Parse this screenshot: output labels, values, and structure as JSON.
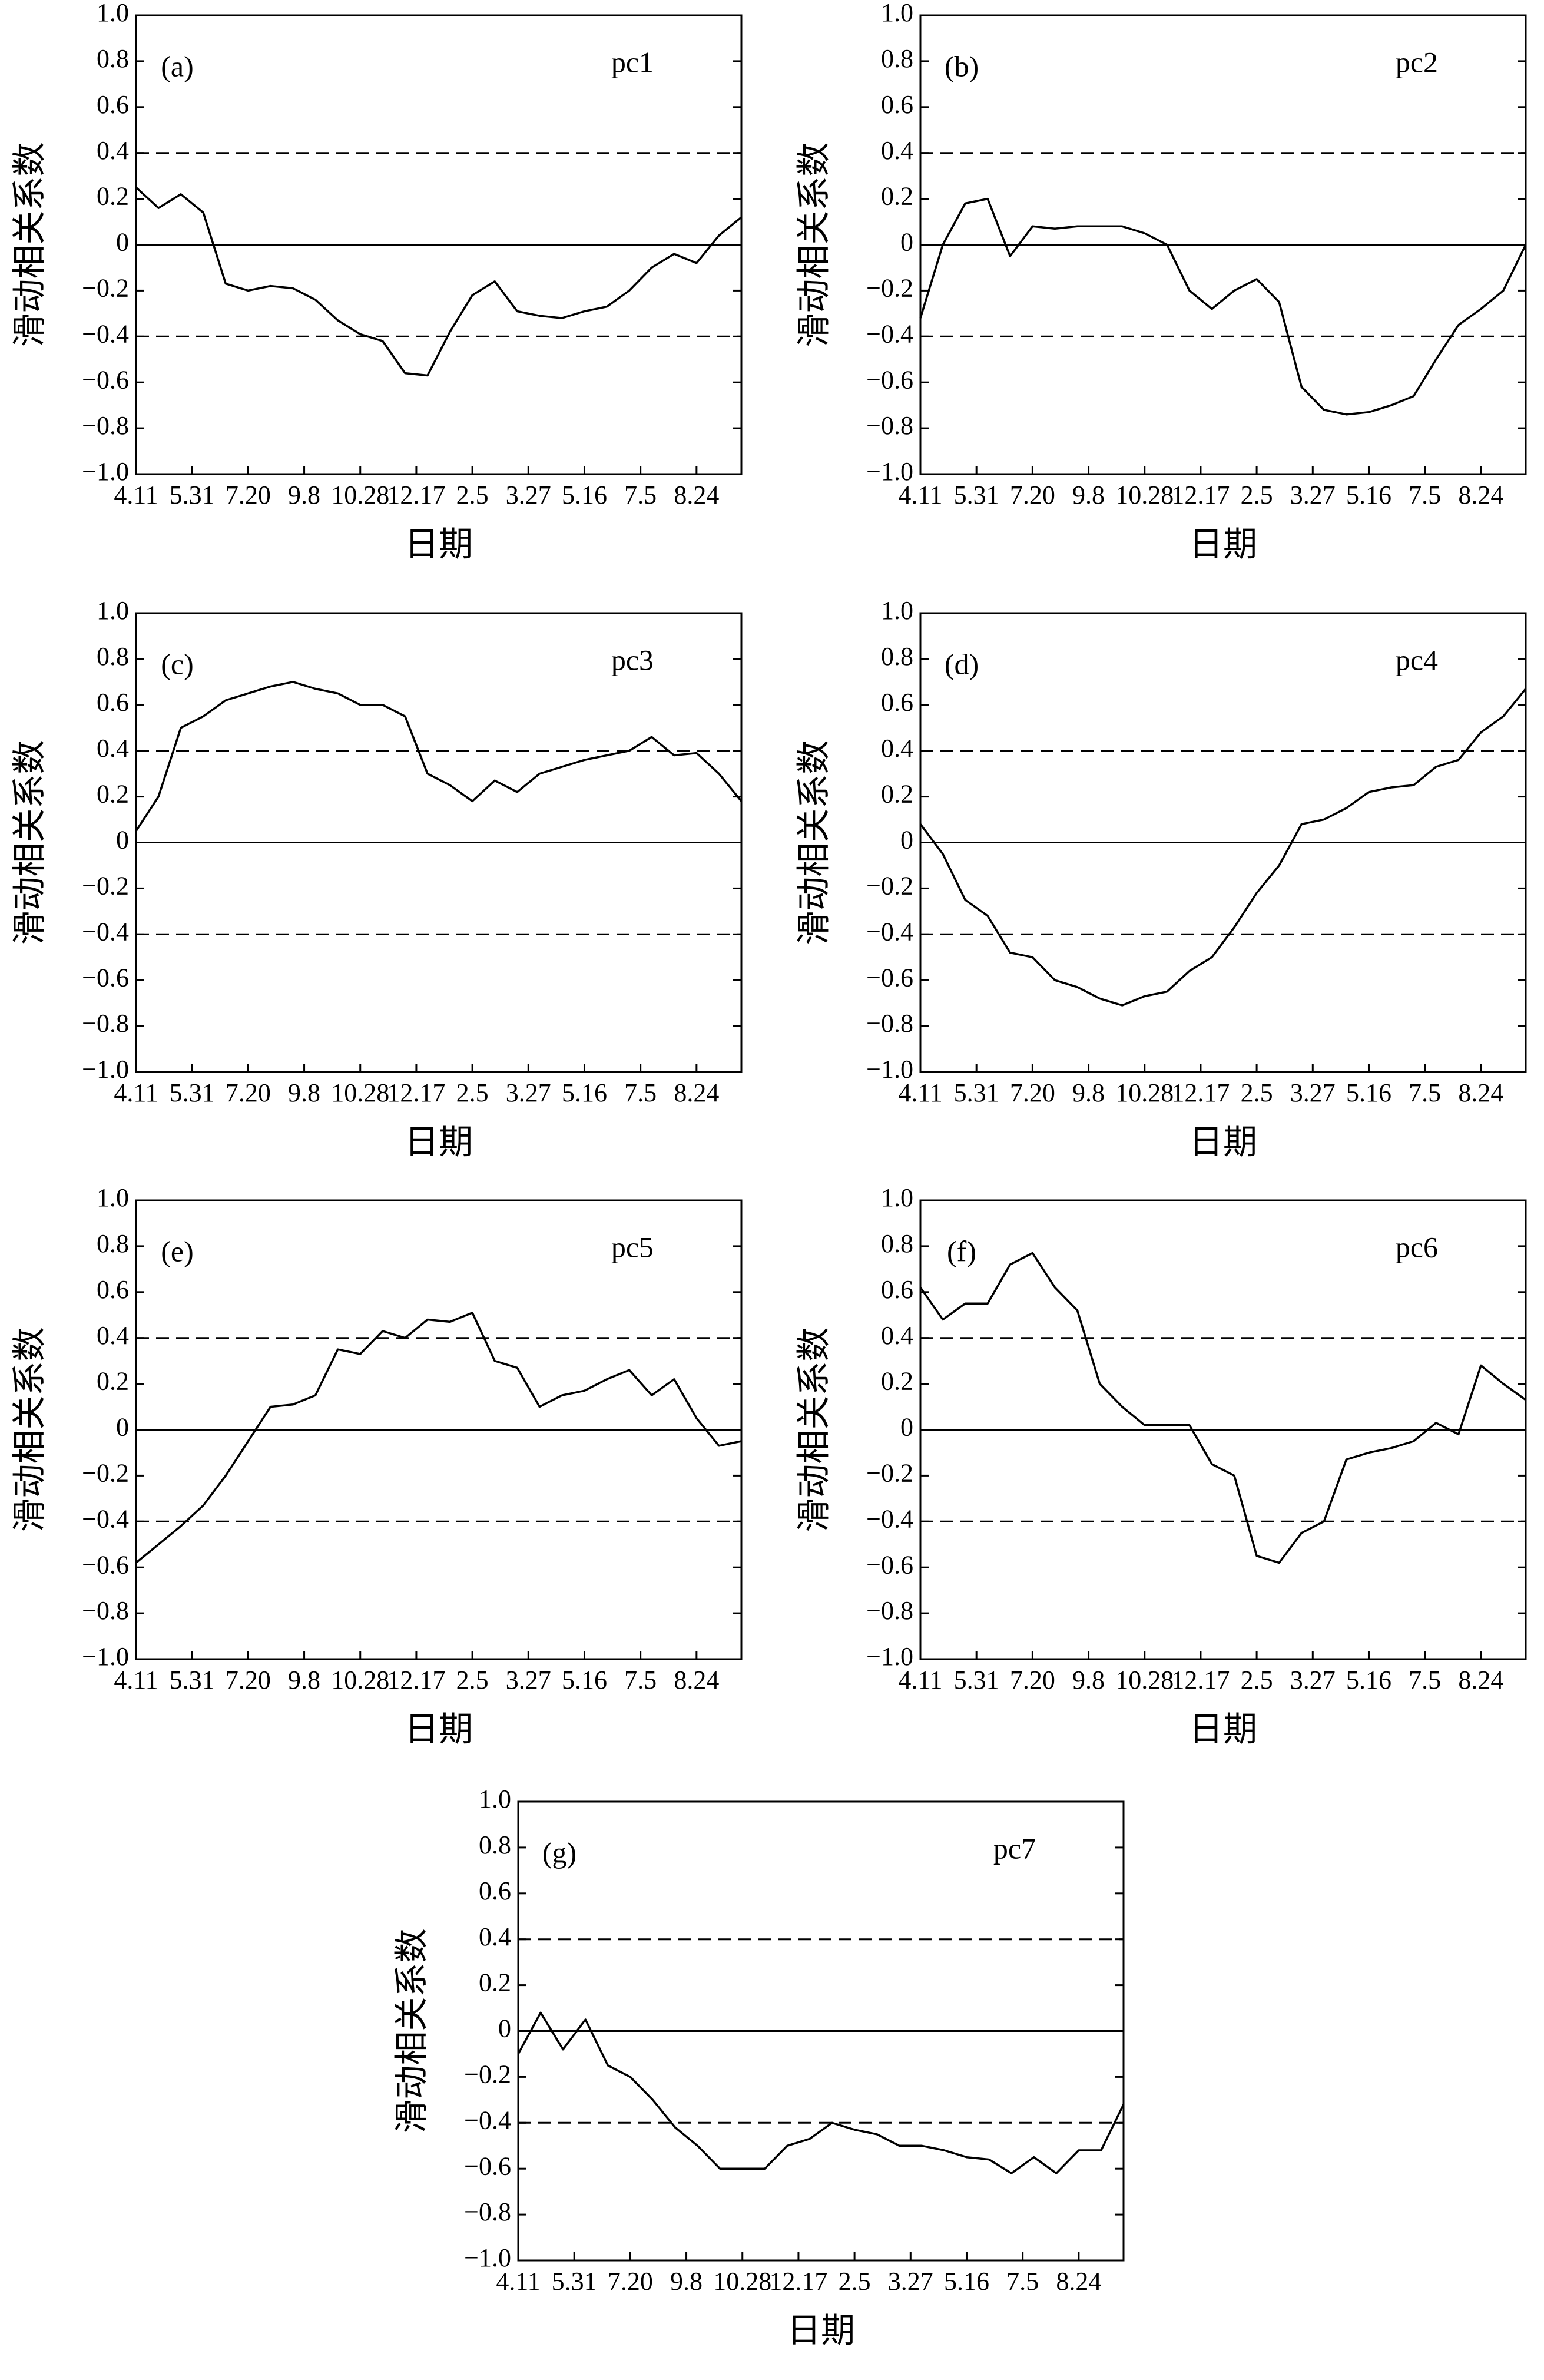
{
  "chart_data": [
    {
      "type": "line",
      "panel_label": "(a)",
      "title": "pc1",
      "x_label": "日期",
      "y_label": "滑动相关系数",
      "x": [
        0,
        20,
        40,
        60,
        80,
        100,
        120,
        140,
        160,
        180,
        200,
        220,
        240,
        260,
        280,
        300,
        320,
        340,
        360,
        380,
        400,
        420,
        440,
        460,
        480,
        500,
        520,
        540
      ],
      "xlim": [
        0,
        540
      ],
      "xticks": [
        {
          "value": 0,
          "label": "4.11"
        },
        {
          "value": 50,
          "label": "5.31"
        },
        {
          "value": 100,
          "label": "7.20"
        },
        {
          "value": 150,
          "label": "9.8"
        },
        {
          "value": 200,
          "label": "10.28"
        },
        {
          "value": 250,
          "label": "12.17"
        },
        {
          "value": 300,
          "label": "2.5"
        },
        {
          "value": 350,
          "label": "3.27"
        },
        {
          "value": 400,
          "label": "5.16"
        },
        {
          "value": 450,
          "label": "7.5"
        },
        {
          "value": 500,
          "label": "8.24"
        }
      ],
      "ylim": [
        -1,
        1
      ],
      "yticks": [
        {
          "value": 1,
          "label": "1.0"
        },
        0.8,
        0.6,
        0.4,
        0.2,
        0,
        {
          "value": -0.2,
          "label": "−0.2"
        },
        {
          "value": -0.4,
          "label": "−0.4"
        },
        {
          "value": -0.6,
          "label": "−0.6"
        },
        {
          "value": -0.8,
          "label": "−0.8"
        },
        {
          "value": -1,
          "label": "−1.0"
        }
      ],
      "reference_lines": [
        {
          "value": 0.4,
          "style": "dashed"
        },
        {
          "value": 0,
          "style": "solid"
        },
        {
          "value": -0.4,
          "style": "dashed"
        }
      ],
      "series": [
        {
          "color": "#000000",
          "values": [
            0.25,
            0.16,
            0.22,
            0.14,
            -0.17,
            -0.2,
            -0.18,
            -0.19,
            -0.24,
            -0.33,
            -0.39,
            -0.42,
            -0.56,
            -0.57,
            -0.38,
            -0.22,
            -0.16,
            -0.29,
            -0.31,
            -0.32,
            -0.29,
            -0.27,
            -0.2,
            -0.1,
            -0.04,
            -0.08,
            0.04,
            0.12
          ]
        }
      ]
    },
    {
      "type": "line",
      "panel_label": "(b)",
      "title": "pc2",
      "x_label": "日期",
      "y_label": "滑动相关系数",
      "x": [
        0,
        20,
        40,
        60,
        80,
        100,
        120,
        140,
        160,
        180,
        200,
        220,
        240,
        260,
        280,
        300,
        320,
        340,
        360,
        380,
        400,
        420,
        440,
        460,
        480,
        500,
        520,
        540
      ],
      "xlim": [
        0,
        540
      ],
      "xticks": [
        {
          "value": 0,
          "label": "4.11"
        },
        {
          "value": 50,
          "label": "5.31"
        },
        {
          "value": 100,
          "label": "7.20"
        },
        {
          "value": 150,
          "label": "9.8"
        },
        {
          "value": 200,
          "label": "10.28"
        },
        {
          "value": 250,
          "label": "12.17"
        },
        {
          "value": 300,
          "label": "2.5"
        },
        {
          "value": 350,
          "label": "3.27"
        },
        {
          "value": 400,
          "label": "5.16"
        },
        {
          "value": 450,
          "label": "7.5"
        },
        {
          "value": 500,
          "label": "8.24"
        }
      ],
      "ylim": [
        -1,
        1
      ],
      "yticks": [
        {
          "value": 1,
          "label": "1.0"
        },
        0.8,
        0.6,
        0.4,
        0.2,
        0,
        {
          "value": -0.2,
          "label": "−0.2"
        },
        {
          "value": -0.4,
          "label": "−0.4"
        },
        {
          "value": -0.6,
          "label": "−0.6"
        },
        {
          "value": -0.8,
          "label": "−0.8"
        },
        {
          "value": -1,
          "label": "−1.0"
        }
      ],
      "reference_lines": [
        {
          "value": 0.4,
          "style": "dashed"
        },
        {
          "value": 0,
          "style": "solid"
        },
        {
          "value": -0.4,
          "style": "dashed"
        }
      ],
      "series": [
        {
          "color": "#000000",
          "values": [
            -0.32,
            0.0,
            0.18,
            0.2,
            -0.05,
            0.08,
            0.07,
            0.08,
            0.08,
            0.08,
            0.05,
            0.0,
            -0.2,
            -0.28,
            -0.2,
            -0.15,
            -0.25,
            -0.62,
            -0.72,
            -0.74,
            -0.73,
            -0.7,
            -0.66,
            -0.5,
            -0.35,
            -0.28,
            -0.2,
            0.0
          ]
        }
      ]
    },
    {
      "type": "line",
      "panel_label": "(c)",
      "title": "pc3",
      "x_label": "日期",
      "y_label": "滑动相关系数",
      "x": [
        0,
        20,
        40,
        60,
        80,
        100,
        120,
        140,
        160,
        180,
        200,
        220,
        240,
        260,
        280,
        300,
        320,
        340,
        360,
        380,
        400,
        420,
        440,
        460,
        480,
        500,
        520,
        540
      ],
      "xlim": [
        0,
        540
      ],
      "xticks": [
        {
          "value": 0,
          "label": "4.11"
        },
        {
          "value": 50,
          "label": "5.31"
        },
        {
          "value": 100,
          "label": "7.20"
        },
        {
          "value": 150,
          "label": "9.8"
        },
        {
          "value": 200,
          "label": "10.28"
        },
        {
          "value": 250,
          "label": "12.17"
        },
        {
          "value": 300,
          "label": "2.5"
        },
        {
          "value": 350,
          "label": "3.27"
        },
        {
          "value": 400,
          "label": "5.16"
        },
        {
          "value": 450,
          "label": "7.5"
        },
        {
          "value": 500,
          "label": "8.24"
        }
      ],
      "ylim": [
        -1,
        1
      ],
      "yticks": [
        {
          "value": 1,
          "label": "1.0"
        },
        0.8,
        0.6,
        0.4,
        0.2,
        0,
        {
          "value": -0.2,
          "label": "−0.2"
        },
        {
          "value": -0.4,
          "label": "−0.4"
        },
        {
          "value": -0.6,
          "label": "−0.6"
        },
        {
          "value": -0.8,
          "label": "−0.8"
        },
        {
          "value": -1,
          "label": "−1.0"
        }
      ],
      "reference_lines": [
        {
          "value": 0.4,
          "style": "dashed"
        },
        {
          "value": 0,
          "style": "solid"
        },
        {
          "value": -0.4,
          "style": "dashed"
        }
      ],
      "series": [
        {
          "color": "#000000",
          "values": [
            0.05,
            0.2,
            0.5,
            0.55,
            0.62,
            0.65,
            0.68,
            0.7,
            0.67,
            0.65,
            0.6,
            0.6,
            0.55,
            0.3,
            0.25,
            0.18,
            0.27,
            0.22,
            0.3,
            0.33,
            0.36,
            0.38,
            0.4,
            0.46,
            0.38,
            0.39,
            0.3,
            0.18
          ]
        }
      ]
    },
    {
      "type": "line",
      "panel_label": "(d)",
      "title": "pc4",
      "x_label": "日期",
      "y_label": "滑动相关系数",
      "x": [
        0,
        20,
        40,
        60,
        80,
        100,
        120,
        140,
        160,
        180,
        200,
        220,
        240,
        260,
        280,
        300,
        320,
        340,
        360,
        380,
        400,
        420,
        440,
        460,
        480,
        500,
        520,
        540
      ],
      "xlim": [
        0,
        540
      ],
      "xticks": [
        {
          "value": 0,
          "label": "4.11"
        },
        {
          "value": 50,
          "label": "5.31"
        },
        {
          "value": 100,
          "label": "7.20"
        },
        {
          "value": 150,
          "label": "9.8"
        },
        {
          "value": 200,
          "label": "10.28"
        },
        {
          "value": 250,
          "label": "12.17"
        },
        {
          "value": 300,
          "label": "2.5"
        },
        {
          "value": 350,
          "label": "3.27"
        },
        {
          "value": 400,
          "label": "5.16"
        },
        {
          "value": 450,
          "label": "7.5"
        },
        {
          "value": 500,
          "label": "8.24"
        }
      ],
      "ylim": [
        -1,
        1
      ],
      "yticks": [
        {
          "value": 1,
          "label": "1.0"
        },
        0.8,
        0.6,
        0.4,
        0.2,
        0,
        {
          "value": -0.2,
          "label": "−0.2"
        },
        {
          "value": -0.4,
          "label": "−0.4"
        },
        {
          "value": -0.6,
          "label": "−0.6"
        },
        {
          "value": -0.8,
          "label": "−0.8"
        },
        {
          "value": -1,
          "label": "−1.0"
        }
      ],
      "reference_lines": [
        {
          "value": 0.4,
          "style": "dashed"
        },
        {
          "value": 0,
          "style": "solid"
        },
        {
          "value": -0.4,
          "style": "dashed"
        }
      ],
      "series": [
        {
          "color": "#000000",
          "values": [
            0.08,
            -0.05,
            -0.25,
            -0.32,
            -0.48,
            -0.5,
            -0.6,
            -0.63,
            -0.68,
            -0.71,
            -0.67,
            -0.65,
            -0.56,
            -0.5,
            -0.37,
            -0.22,
            -0.1,
            0.08,
            0.1,
            0.15,
            0.22,
            0.24,
            0.25,
            0.33,
            0.36,
            0.48,
            0.55,
            0.67
          ]
        }
      ]
    },
    {
      "type": "line",
      "panel_label": "(e)",
      "title": "pc5",
      "x_label": "日期",
      "y_label": "滑动相关系数",
      "x": [
        0,
        20,
        40,
        60,
        80,
        100,
        120,
        140,
        160,
        180,
        200,
        220,
        240,
        260,
        280,
        300,
        320,
        340,
        360,
        380,
        400,
        420,
        440,
        460,
        480,
        500,
        520,
        540
      ],
      "xlim": [
        0,
        540
      ],
      "xticks": [
        {
          "value": 0,
          "label": "4.11"
        },
        {
          "value": 50,
          "label": "5.31"
        },
        {
          "value": 100,
          "label": "7.20"
        },
        {
          "value": 150,
          "label": "9.8"
        },
        {
          "value": 200,
          "label": "10.28"
        },
        {
          "value": 250,
          "label": "12.17"
        },
        {
          "value": 300,
          "label": "2.5"
        },
        {
          "value": 350,
          "label": "3.27"
        },
        {
          "value": 400,
          "label": "5.16"
        },
        {
          "value": 450,
          "label": "7.5"
        },
        {
          "value": 500,
          "label": "8.24"
        }
      ],
      "ylim": [
        -1,
        1
      ],
      "yticks": [
        {
          "value": 1,
          "label": "1.0"
        },
        0.8,
        0.6,
        0.4,
        0.2,
        0,
        {
          "value": -0.2,
          "label": "−0.2"
        },
        {
          "value": -0.4,
          "label": "−0.4"
        },
        {
          "value": -0.6,
          "label": "−0.6"
        },
        {
          "value": -0.8,
          "label": "−0.8"
        },
        {
          "value": -1,
          "label": "−1.0"
        }
      ],
      "reference_lines": [
        {
          "value": 0.4,
          "style": "dashed"
        },
        {
          "value": 0,
          "style": "solid"
        },
        {
          "value": -0.4,
          "style": "dashed"
        }
      ],
      "series": [
        {
          "color": "#000000",
          "values": [
            -0.58,
            -0.5,
            -0.42,
            -0.33,
            -0.2,
            -0.05,
            0.1,
            0.11,
            0.15,
            0.35,
            0.33,
            0.43,
            0.4,
            0.48,
            0.47,
            0.51,
            0.3,
            0.27,
            0.1,
            0.15,
            0.17,
            0.22,
            0.26,
            0.15,
            0.22,
            0.05,
            -0.07,
            -0.05
          ]
        }
      ]
    },
    {
      "type": "line",
      "panel_label": "(f)",
      "title": "pc6",
      "x_label": "日期",
      "y_label": "滑动相关系数",
      "x": [
        0,
        20,
        40,
        60,
        80,
        100,
        120,
        140,
        160,
        180,
        200,
        220,
        240,
        260,
        280,
        300,
        320,
        340,
        360,
        380,
        400,
        420,
        440,
        460,
        480,
        500,
        520,
        540
      ],
      "xlim": [
        0,
        540
      ],
      "xticks": [
        {
          "value": 0,
          "label": "4.11"
        },
        {
          "value": 50,
          "label": "5.31"
        },
        {
          "value": 100,
          "label": "7.20"
        },
        {
          "value": 150,
          "label": "9.8"
        },
        {
          "value": 200,
          "label": "10.28"
        },
        {
          "value": 250,
          "label": "12.17"
        },
        {
          "value": 300,
          "label": "2.5"
        },
        {
          "value": 350,
          "label": "3.27"
        },
        {
          "value": 400,
          "label": "5.16"
        },
        {
          "value": 450,
          "label": "7.5"
        },
        {
          "value": 500,
          "label": "8.24"
        }
      ],
      "ylim": [
        -1,
        1
      ],
      "yticks": [
        {
          "value": 1,
          "label": "1.0"
        },
        0.8,
        0.6,
        0.4,
        0.2,
        0,
        {
          "value": -0.2,
          "label": "−0.2"
        },
        {
          "value": -0.4,
          "label": "−0.4"
        },
        {
          "value": -0.6,
          "label": "−0.6"
        },
        {
          "value": -0.8,
          "label": "−0.8"
        },
        {
          "value": -1,
          "label": "−1.0"
        }
      ],
      "reference_lines": [
        {
          "value": 0.4,
          "style": "dashed"
        },
        {
          "value": 0,
          "style": "solid"
        },
        {
          "value": -0.4,
          "style": "dashed"
        }
      ],
      "series": [
        {
          "color": "#000000",
          "values": [
            0.62,
            0.48,
            0.55,
            0.55,
            0.72,
            0.77,
            0.62,
            0.52,
            0.2,
            0.1,
            0.02,
            0.02,
            0.02,
            -0.15,
            -0.2,
            -0.55,
            -0.58,
            -0.45,
            -0.4,
            -0.13,
            -0.1,
            -0.08,
            -0.05,
            0.03,
            -0.02,
            0.28,
            0.2,
            0.13
          ]
        }
      ]
    },
    {
      "type": "line",
      "panel_label": "(g)",
      "title": "pc7",
      "x_label": "日期",
      "y_label": "滑动相关系数",
      "x": [
        0,
        20,
        40,
        60,
        80,
        100,
        120,
        140,
        160,
        180,
        200,
        220,
        240,
        260,
        280,
        300,
        320,
        340,
        360,
        380,
        400,
        420,
        440,
        460,
        480,
        500,
        520,
        540
      ],
      "xlim": [
        0,
        540
      ],
      "xticks": [
        {
          "value": 0,
          "label": "4.11"
        },
        {
          "value": 50,
          "label": "5.31"
        },
        {
          "value": 100,
          "label": "7.20"
        },
        {
          "value": 150,
          "label": "9.8"
        },
        {
          "value": 200,
          "label": "10.28"
        },
        {
          "value": 250,
          "label": "12.17"
        },
        {
          "value": 300,
          "label": "2.5"
        },
        {
          "value": 350,
          "label": "3.27"
        },
        {
          "value": 400,
          "label": "5.16"
        },
        {
          "value": 450,
          "label": "7.5"
        },
        {
          "value": 500,
          "label": "8.24"
        }
      ],
      "ylim": [
        -1,
        1
      ],
      "yticks": [
        {
          "value": 1,
          "label": "1.0"
        },
        0.8,
        0.6,
        0.4,
        0.2,
        0,
        {
          "value": -0.2,
          "label": "−0.2"
        },
        {
          "value": -0.4,
          "label": "−0.4"
        },
        {
          "value": -0.6,
          "label": "−0.6"
        },
        {
          "value": -0.8,
          "label": "−0.8"
        },
        {
          "value": -1,
          "label": "−1.0"
        }
      ],
      "reference_lines": [
        {
          "value": 0.4,
          "style": "dashed"
        },
        {
          "value": 0,
          "style": "solid"
        },
        {
          "value": -0.4,
          "style": "dashed"
        }
      ],
      "series": [
        {
          "color": "#000000",
          "values": [
            -0.1,
            0.08,
            -0.08,
            0.05,
            -0.15,
            -0.2,
            -0.3,
            -0.42,
            -0.5,
            -0.6,
            -0.6,
            -0.6,
            -0.5,
            -0.47,
            -0.4,
            -0.43,
            -0.45,
            -0.5,
            -0.5,
            -0.52,
            -0.55,
            -0.56,
            -0.62,
            -0.55,
            -0.62,
            -0.52,
            -0.52,
            -0.32
          ]
        }
      ]
    }
  ]
}
